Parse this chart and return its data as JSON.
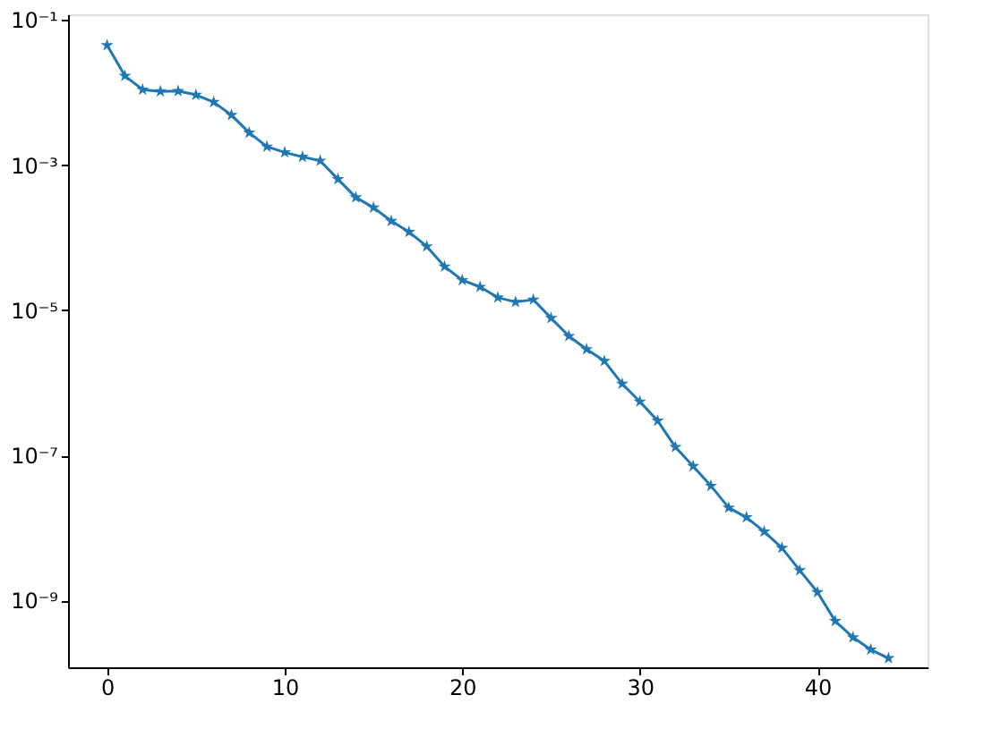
{
  "chart_data": {
    "type": "line",
    "log": "y",
    "marker": "star",
    "line_style": "solid",
    "grid": false,
    "x": [
      0,
      1,
      2,
      3,
      4,
      5,
      6,
      7,
      8,
      9,
      10,
      11,
      12,
      13,
      14,
      15,
      16,
      17,
      18,
      19,
      20,
      21,
      22,
      23,
      24,
      25,
      26,
      27,
      28,
      29,
      30,
      31,
      32,
      33,
      34,
      35,
      36,
      37,
      38,
      39,
      40,
      41,
      42,
      43,
      44
    ],
    "series": [
      {
        "color": "#1f77b4",
        "values": [
          0.045,
          0.017,
          0.011,
          0.0104,
          0.0105,
          0.0093,
          0.0074,
          0.0049,
          0.0028,
          0.0018,
          0.0015,
          0.0013,
          0.00115,
          0.00064,
          0.00036,
          0.00026,
          0.00017,
          0.00012,
          7.6e-05,
          4e-05,
          2.6e-05,
          2.1e-05,
          1.5e-05,
          1.3e-05,
          1.4e-05,
          7.8e-06,
          4.4e-06,
          2.9e-06,
          2e-06,
          9.7e-07,
          5.5e-07,
          3e-07,
          1.3e-07,
          7.1e-08,
          3.8e-08,
          1.9e-08,
          1.4e-08,
          8.9e-09,
          5.3e-09,
          2.6e-09,
          1.3e-09,
          5.2e-10,
          3.1e-10,
          2.1e-10,
          1.6e-10
        ]
      }
    ],
    "xlim": [
      -2.2,
      46.2
    ],
    "xticks": [
      0,
      10,
      20,
      30,
      40
    ],
    "ylim": [
      1.2e-10,
      0.12
    ],
    "yticks": [
      {
        "value": 0.1,
        "label": "10⁻¹"
      },
      {
        "value": 0.001,
        "label": "10⁻³"
      },
      {
        "value": 1e-05,
        "label": "10⁻⁵"
      },
      {
        "value": 1e-07,
        "label": "10⁻⁷"
      },
      {
        "value": 1e-09,
        "label": "10⁻⁹"
      }
    ]
  }
}
